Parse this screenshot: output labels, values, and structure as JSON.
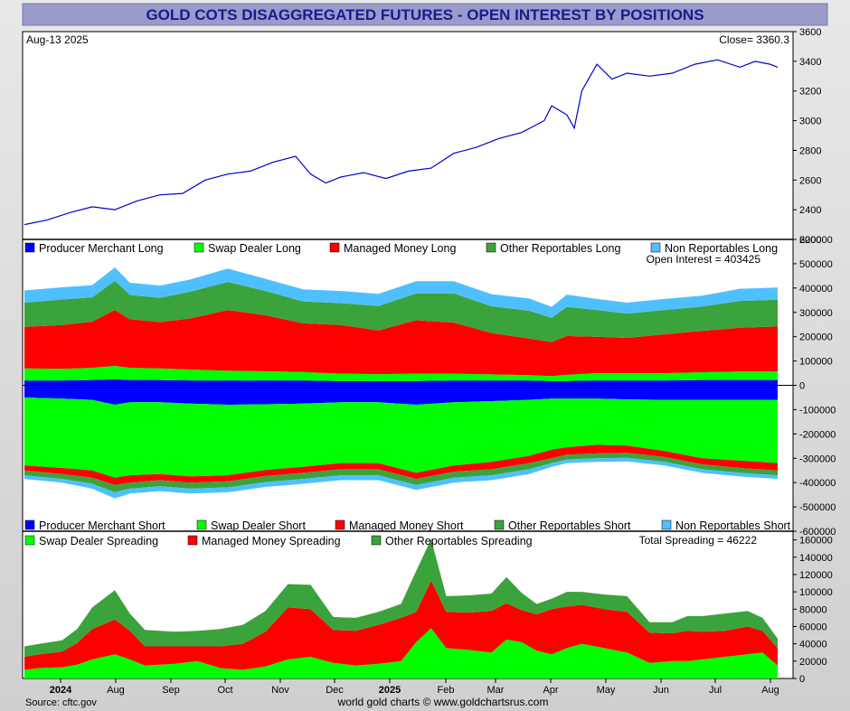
{
  "title": "GOLD COTS DISAGGREGATED FUTURES - OPEN INTEREST BY POSITIONS",
  "date_label": "Aug-13  2025",
  "close_label": "Close= 3360.3",
  "open_interest_label": "Open Interest = 403425",
  "total_spreading_label": "Total Spreading = 46222",
  "source_label": "Source: cftc.gov",
  "footer_label": "world gold charts © www.goldchartsrus.com",
  "colors": {
    "producer": "#0000ff",
    "swap": "#00ff00",
    "managed": "#ff0000",
    "other": "#3ba33b",
    "nonrep": "#4fc0ff",
    "price": "#0000cc",
    "title": "#1a1a8c"
  },
  "chart_data": [
    {
      "type": "line",
      "name": "price",
      "ylim": [
        2200,
        3600
      ],
      "yticks": [
        "2200",
        "2400",
        "2600",
        "2800",
        "3000",
        "3200",
        "3400",
        "3600"
      ],
      "x": [
        0,
        0.03,
        0.06,
        0.09,
        0.12,
        0.15,
        0.18,
        0.21,
        0.24,
        0.27,
        0.3,
        0.33,
        0.36,
        0.38,
        0.4,
        0.42,
        0.45,
        0.48,
        0.51,
        0.54,
        0.57,
        0.6,
        0.63,
        0.66,
        0.69,
        0.7,
        0.72,
        0.73,
        0.74,
        0.76,
        0.78,
        0.8,
        0.83,
        0.86,
        0.89,
        0.92,
        0.95,
        0.97,
        0.99,
        1.0
      ],
      "values": [
        2300,
        2330,
        2380,
        2420,
        2400,
        2460,
        2500,
        2510,
        2600,
        2640,
        2660,
        2720,
        2760,
        2640,
        2580,
        2620,
        2650,
        2610,
        2660,
        2680,
        2780,
        2820,
        2880,
        2920,
        3000,
        3100,
        3040,
        2950,
        3200,
        3380,
        3280,
        3320,
        3300,
        3320,
        3380,
        3410,
        3360,
        3400,
        3380,
        3360
      ]
    },
    {
      "type": "area",
      "name": "positions",
      "ylim": [
        -600000,
        600000
      ],
      "yticks": [
        "-600000",
        "-500000",
        "-400000",
        "-300000",
        "-200000",
        "-100000",
        "0",
        "100000",
        "200000",
        "300000",
        "400000",
        "500000",
        "600000"
      ],
      "legend_long": [
        "Producer Merchant Long",
        "Swap Dealer Long",
        "Managed Money Long",
        "Other Reportables Long",
        "Non Reportables Long"
      ],
      "legend_short": [
        "Producer Merchant Short",
        "Swap Dealer Short",
        "Managed Money Short",
        "Other Reportables Short",
        "Non Reportables Short"
      ],
      "x": [
        0,
        0.05,
        0.09,
        0.12,
        0.14,
        0.18,
        0.22,
        0.27,
        0.32,
        0.37,
        0.42,
        0.47,
        0.52,
        0.57,
        0.62,
        0.67,
        0.7,
        0.72,
        0.76,
        0.8,
        0.85,
        0.9,
        0.95,
        1.0
      ],
      "long_series": [
        {
          "name": "Producer Merchant Long",
          "values": [
            20000,
            20000,
            22000,
            25000,
            22000,
            22000,
            20000,
            20000,
            20000,
            20000,
            18000,
            18000,
            18000,
            20000,
            20000,
            20000,
            18000,
            18000,
            20000,
            20000,
            20000,
            22000,
            22000,
            22000
          ]
        },
        {
          "name": "Swap Dealer Long",
          "values": [
            50000,
            48000,
            50000,
            55000,
            50000,
            48000,
            45000,
            40000,
            38000,
            35000,
            30000,
            28000,
            30000,
            28000,
            25000,
            22000,
            20000,
            25000,
            30000,
            30000,
            30000,
            32000,
            35000,
            35000
          ]
        },
        {
          "name": "Managed Money Long",
          "values": [
            170000,
            180000,
            190000,
            230000,
            200000,
            190000,
            210000,
            250000,
            230000,
            200000,
            200000,
            180000,
            220000,
            210000,
            170000,
            150000,
            140000,
            160000,
            150000,
            145000,
            160000,
            170000,
            180000,
            185000
          ]
        },
        {
          "name": "Other Reportables Long",
          "values": [
            100000,
            105000,
            100000,
            120000,
            100000,
            100000,
            110000,
            115000,
            100000,
            90000,
            90000,
            100000,
            110000,
            120000,
            110000,
            115000,
            100000,
            120000,
            110000,
            100000,
            100000,
            100000,
            110000,
            110000
          ]
        },
        {
          "name": "Non Reportables Long",
          "values": [
            50000,
            50000,
            50000,
            55000,
            50000,
            50000,
            50000,
            55000,
            50000,
            50000,
            50000,
            50000,
            50000,
            50000,
            50000,
            50000,
            45000,
            50000,
            45000,
            45000,
            45000,
            45000,
            50000,
            50000
          ]
        }
      ],
      "short_series": [
        {
          "name": "Producer Merchant Short",
          "values": [
            50000,
            55000,
            60000,
            80000,
            70000,
            70000,
            75000,
            80000,
            78000,
            75000,
            70000,
            70000,
            80000,
            70000,
            65000,
            60000,
            55000,
            55000,
            55000,
            58000,
            60000,
            60000,
            60000,
            60000
          ]
        },
        {
          "name": "Swap Dealer Short",
          "values": [
            280000,
            285000,
            290000,
            300000,
            300000,
            295000,
            300000,
            290000,
            270000,
            260000,
            250000,
            250000,
            280000,
            260000,
            250000,
            230000,
            210000,
            200000,
            190000,
            190000,
            210000,
            240000,
            250000,
            260000
          ]
        },
        {
          "name": "Managed Money Short",
          "values": [
            20000,
            25000,
            30000,
            30000,
            30000,
            25000,
            25000,
            25000,
            25000,
            25000,
            25000,
            25000,
            25000,
            25000,
            30000,
            30000,
            35000,
            30000,
            35000,
            30000,
            25000,
            25000,
            30000,
            30000
          ]
        },
        {
          "name": "Other Reportables Short",
          "values": [
            20000,
            20000,
            25000,
            30000,
            25000,
            25000,
            25000,
            25000,
            25000,
            25000,
            25000,
            25000,
            25000,
            25000,
            25000,
            25000,
            20000,
            20000,
            20000,
            20000,
            20000,
            20000,
            20000,
            20000
          ]
        },
        {
          "name": "Non Reportables Short",
          "values": [
            15000,
            15000,
            20000,
            25000,
            20000,
            20000,
            20000,
            20000,
            20000,
            20000,
            20000,
            20000,
            20000,
            20000,
            20000,
            20000,
            15000,
            15000,
            15000,
            15000,
            15000,
            15000,
            15000,
            15000
          ]
        }
      ]
    },
    {
      "type": "area",
      "name": "spreading",
      "ylim": [
        0,
        170000
      ],
      "yticks": [
        "0",
        "20000",
        "40000",
        "60000",
        "80000",
        "100000",
        "120000",
        "140000",
        "160000"
      ],
      "legend": [
        "Swap Dealer Spreading",
        "Managed Money Spreading",
        "Other Reportables Spreading"
      ],
      "x": [
        0,
        0.02,
        0.05,
        0.07,
        0.09,
        0.12,
        0.14,
        0.16,
        0.2,
        0.23,
        0.26,
        0.29,
        0.32,
        0.35,
        0.38,
        0.41,
        0.44,
        0.47,
        0.5,
        0.52,
        0.54,
        0.56,
        0.59,
        0.62,
        0.64,
        0.66,
        0.68,
        0.7,
        0.72,
        0.74,
        0.77,
        0.8,
        0.83,
        0.86,
        0.88,
        0.9,
        0.93,
        0.96,
        0.98,
        1.0
      ],
      "series": [
        {
          "name": "Swap Dealer Spreading",
          "values": [
            10000,
            12000,
            13000,
            16000,
            22000,
            28000,
            22000,
            15000,
            17000,
            20000,
            12000,
            10000,
            14000,
            22000,
            25000,
            18000,
            15000,
            17000,
            20000,
            42000,
            58000,
            35000,
            33000,
            30000,
            45000,
            42000,
            32000,
            28000,
            35000,
            40000,
            35000,
            30000,
            18000,
            20000,
            20000,
            22000,
            25000,
            28000,
            30000,
            15000
          ]
        },
        {
          "name": "Managed Money Spreading",
          "values": [
            15000,
            16000,
            18000,
            25000,
            35000,
            40000,
            33000,
            22000,
            20000,
            17000,
            25000,
            30000,
            40000,
            60000,
            55000,
            38000,
            40000,
            45000,
            50000,
            35000,
            55000,
            42000,
            43000,
            48000,
            42000,
            37000,
            42000,
            52000,
            48000,
            45000,
            45000,
            47000,
            35000,
            32000,
            35000,
            32000,
            30000,
            32000,
            25000,
            20000
          ]
        },
        {
          "name": "Other Reportables Spreading",
          "values": [
            12000,
            12000,
            13000,
            16000,
            25000,
            34000,
            20000,
            19000,
            17000,
            18000,
            20000,
            22000,
            24000,
            27000,
            28000,
            15000,
            15000,
            15000,
            16000,
            47000,
            48000,
            18000,
            20000,
            20000,
            30000,
            20000,
            12000,
            12000,
            17000,
            15000,
            17000,
            18000,
            12000,
            13000,
            17000,
            18000,
            20000,
            18000,
            15000,
            11000
          ]
        }
      ]
    }
  ],
  "xaxis": {
    "labels": [
      "2024",
      "Aug",
      "Sep",
      "Oct",
      "Nov",
      "Dec",
      "2025",
      "Feb",
      "Mar",
      "Apr",
      "May",
      "Jun",
      "Jul",
      "Aug"
    ],
    "bold": [
      "2024",
      "2025"
    ]
  }
}
